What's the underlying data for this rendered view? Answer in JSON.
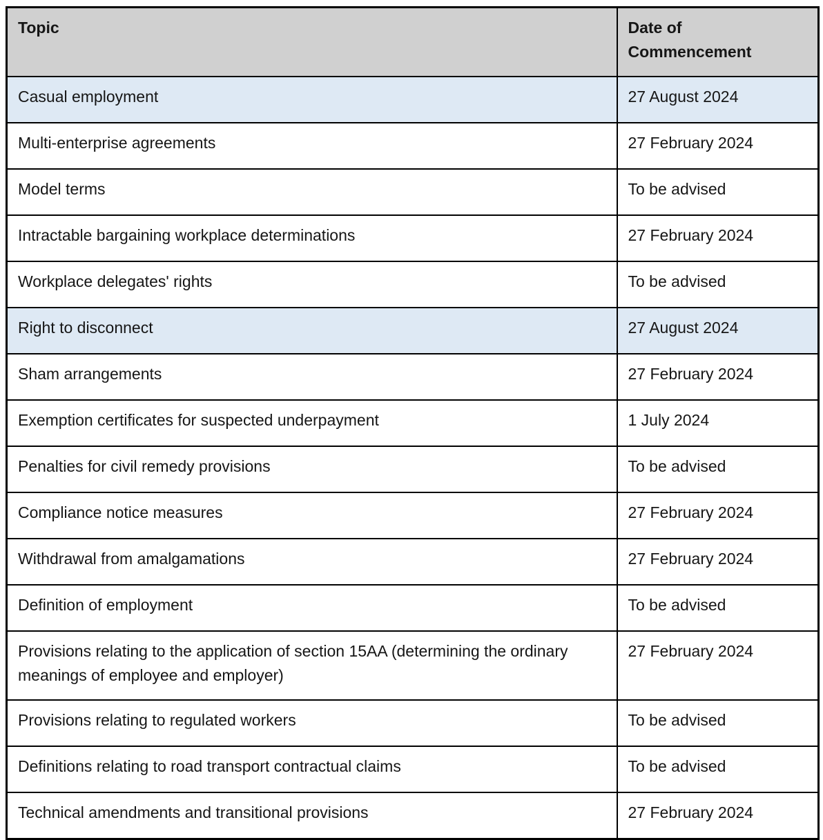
{
  "table": {
    "columns": [
      {
        "label": "Topic"
      },
      {
        "label": "Date of Commencement"
      }
    ],
    "rows": [
      {
        "topic": "Casual employment",
        "date": "27 August 2024",
        "highlighted": true
      },
      {
        "topic": "Multi-enterprise agreements",
        "date": "27 February 2024",
        "highlighted": false
      },
      {
        "topic": "Model terms",
        "date": "To be advised",
        "highlighted": false
      },
      {
        "topic": "Intractable bargaining workplace determinations",
        "date": "27 February 2024",
        "highlighted": false
      },
      {
        "topic": "Workplace delegates' rights",
        "date": "To be advised",
        "highlighted": false
      },
      {
        "topic": "Right to disconnect",
        "date": "27 August 2024",
        "highlighted": true
      },
      {
        "topic": "Sham arrangements",
        "date": "27 February 2024",
        "highlighted": false
      },
      {
        "topic": "Exemption certificates for suspected underpayment",
        "date": "1 July 2024",
        "highlighted": false
      },
      {
        "topic": "Penalties for civil remedy provisions",
        "date": "To be advised",
        "highlighted": false
      },
      {
        "topic": "Compliance notice measures",
        "date": "27 February 2024",
        "highlighted": false
      },
      {
        "topic": "Withdrawal from amalgamations",
        "date": "27 February 2024",
        "highlighted": false
      },
      {
        "topic": "Definition of employment",
        "date": "To be advised",
        "highlighted": false
      },
      {
        "topic": "Provisions relating to the application of section 15AA (determining the ordinary meanings of employee and employer)",
        "date": "27 February 2024",
        "highlighted": false
      },
      {
        "topic": "Provisions relating to regulated workers",
        "date": "To be advised",
        "highlighted": false
      },
      {
        "topic": "Definitions relating to road transport contractual claims",
        "date": "To be advised",
        "highlighted": false
      },
      {
        "topic": "Technical amendments and transitional provisions",
        "date": "27 February 2024",
        "highlighted": false
      }
    ],
    "colors": {
      "header_bg": "#d0d0d0",
      "highlight_bg": "#dee9f4",
      "border": "#000000",
      "text": "#161616",
      "page_bg": "#ffffff"
    }
  }
}
